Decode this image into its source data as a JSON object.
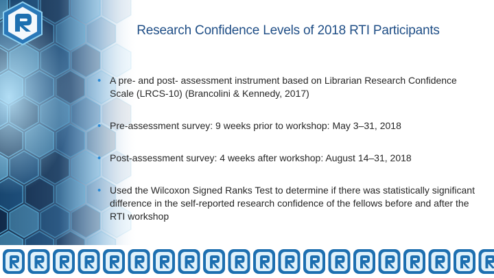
{
  "slide": {
    "title": "Research Confidence Levels of 2018 RTI Participants",
    "bullets": [
      "A pre- and post- assessment instrument based on Librarian Research Confidence Scale (LRCS-10) (Brancolini & Kennedy, 2017)",
      "Pre-assessment survey: 9 weeks prior to workshop: May 3–31, 2018",
      "Post-assessment survey: 4 weeks after workshop: August 14–31, 2018",
      "Used the Wilcoxon Signed Ranks Test to determine if there was statistically significant difference in the self-reported research confidence of the fellows before and after the RTI workshop"
    ]
  },
  "colors": {
    "title": "#1f4e86",
    "bullet_marker": "#2a8ad8",
    "body_text": "#262626",
    "hex_dark": "#0d2a4a",
    "hex_mid": "#1b5e93",
    "hex_light": "#5ab4e0",
    "logo_blue": "#1d6fb0",
    "logo_light": "#dff1fb"
  },
  "icons": {
    "logo": "r-logo-icon",
    "strip_logo": "r-logo-icon"
  }
}
